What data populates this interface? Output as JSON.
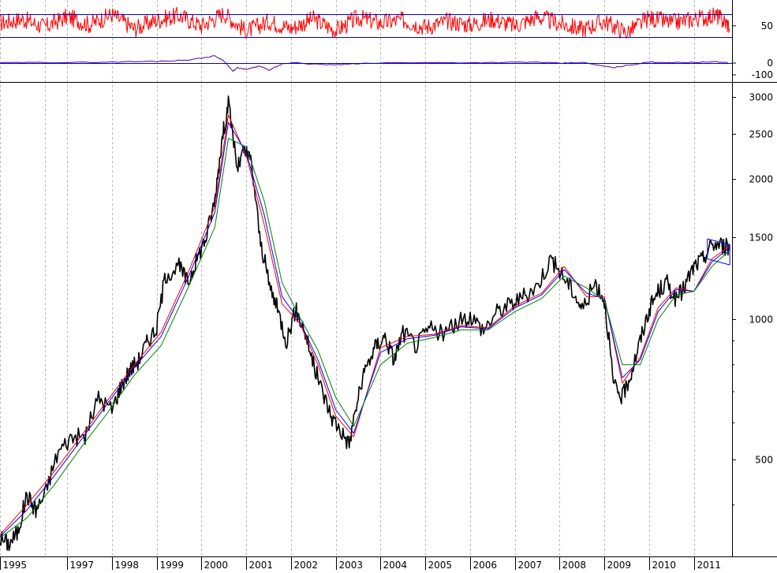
{
  "chart_data": [
    {
      "type": "line",
      "title": "",
      "panel": "oscillator",
      "yticks": [
        50
      ],
      "reference_lines": [
        70,
        30
      ],
      "ylim": [
        10,
        95
      ],
      "series": [
        {
          "color": "#ff0000",
          "x": [
            1995.0,
            1995.5,
            1996.0,
            1996.5,
            1997.0,
            1997.5,
            1998.0,
            1998.5,
            1999.0,
            1999.5,
            2000.0,
            2000.5,
            2001.0,
            2001.5,
            2002.0,
            2002.5,
            2003.0,
            2003.5,
            2004.0,
            2004.5,
            2005.0,
            2005.5,
            2006.0,
            2006.5,
            2007.0,
            2007.5,
            2008.0,
            2008.5,
            2009.0,
            2009.5,
            2010.0,
            2010.5,
            2011.0,
            2011.3
          ],
          "values": [
            55,
            62,
            48,
            66,
            52,
            70,
            45,
            60,
            68,
            50,
            72,
            40,
            58,
            46,
            62,
            42,
            64,
            55,
            60,
            48,
            58,
            52,
            62,
            50,
            66,
            54,
            44,
            58,
            38,
            64,
            55,
            62,
            68,
            50
          ]
        }
      ]
    },
    {
      "type": "line",
      "title": "",
      "panel": "momentum",
      "yticks": [
        0,
        -100
      ],
      "reference_lines": [
        0
      ],
      "ylim": [
        -160,
        120
      ],
      "series": [
        {
          "color": "#5500aa",
          "x": [
            1995.0,
            1996.0,
            1997.0,
            1998.0,
            1998.8,
            1999.3,
            1999.8,
            2000.0,
            2000.2,
            2000.3,
            2000.5,
            2000.8,
            2001.0,
            2001.3,
            2001.6,
            2002.0,
            2002.5,
            2003.0,
            2004.0,
            2005.0,
            2006.0,
            2007.0,
            2007.5,
            2008.0,
            2008.7,
            2009.0,
            2009.5,
            2010.0,
            2010.5,
            2011.0,
            2011.3
          ],
          "values": [
            2,
            5,
            6,
            12,
            18,
            30,
            60,
            20,
            -70,
            -40,
            -55,
            -25,
            -60,
            -10,
            5,
            -10,
            -15,
            -5,
            5,
            3,
            4,
            8,
            -2,
            5,
            -40,
            -20,
            8,
            5,
            6,
            10,
            2
          ]
        }
      ]
    },
    {
      "type": "line",
      "title": "",
      "panel": "price",
      "yscale": "log",
      "yticks": [
        500,
        1000,
        1500,
        2000,
        2500,
        3000
      ],
      "ylim": [
        310,
        3150
      ],
      "xlim": [
        1995.0,
        2011.35
      ],
      "xticks": [
        1995,
        1997,
        1998,
        1999,
        2000,
        2001,
        2002,
        2003,
        2004,
        2005,
        2006,
        2007,
        2008,
        2009,
        2010,
        2011
      ],
      "x_tick_positions": [
        1995.0,
        1996.5,
        1997.5,
        1998.5,
        1999.5,
        2000.5,
        2001.5,
        2002.5,
        2003.5,
        2004.5,
        2005.5,
        2006.5,
        2007.5,
        2008.5,
        2009.5,
        2010.5
      ],
      "vertical_gridlines": [
        1995.0,
        1996.0,
        1996.5,
        1997.5,
        1998.5,
        1999.5,
        2000.5,
        2001.5,
        2002.5,
        2003.5,
        2004.5,
        2005.5,
        2006.5,
        2007.5,
        2008.5,
        2009.5,
        2010.5
      ],
      "grid": "vertical-dashed",
      "series": [
        {
          "color": "#000000",
          "x": [
            1995.0,
            1995.2,
            1995.4,
            1995.6,
            1995.8,
            1996.0,
            1996.3,
            1996.6,
            1996.9,
            1997.2,
            1997.5,
            1997.7,
            1997.9,
            1998.1,
            1998.3,
            1998.5,
            1998.7,
            1999.0,
            1999.2,
            1999.4,
            1999.6,
            1999.8,
            1999.95,
            2000.1,
            2000.3,
            2000.45,
            2000.6,
            2000.8,
            2001.0,
            2001.2,
            2001.4,
            2001.6,
            2001.8,
            2002.0,
            2002.2,
            2002.4,
            2002.6,
            2002.8,
            2003.0,
            2003.2,
            2003.4,
            2003.6,
            2003.8,
            2004.0,
            2004.3,
            2004.6,
            2004.9,
            2005.2,
            2005.5,
            2005.8,
            2006.1,
            2006.4,
            2006.7,
            2007.0,
            2007.3,
            2007.55,
            2007.8,
            2008.0,
            2008.3,
            2008.5,
            2008.7,
            2008.9,
            2009.1,
            2009.3,
            2009.5,
            2009.7,
            2009.9,
            2010.1,
            2010.3,
            2010.5,
            2010.7,
            2010.9,
            2011.1,
            2011.3
          ],
          "values": [
            340,
            330,
            350,
            420,
            390,
            420,
            520,
            560,
            560,
            680,
            640,
            720,
            780,
            820,
            900,
            960,
            1250,
            1300,
            1200,
            1350,
            1500,
            1800,
            2400,
            2900,
            2100,
            2300,
            2200,
            1500,
            1200,
            1050,
            900,
            1050,
            950,
            800,
            700,
            620,
            580,
            540,
            680,
            800,
            880,
            920,
            820,
            940,
            880,
            960,
            930,
            980,
            1020,
            950,
            1040,
            1080,
            1120,
            1180,
            1350,
            1250,
            1150,
            1050,
            1200,
            1100,
            720,
            680,
            770,
            900,
            1050,
            1150,
            1200,
            1100,
            1180,
            1300,
            1350,
            1450,
            1450,
            1420
          ]
        },
        {
          "color": "#ff0000",
          "x": [
            1995.0,
            1995.6,
            1996.2,
            1996.8,
            1997.4,
            1998.0,
            1998.6,
            1999.2,
            1999.8,
            2000.1,
            2000.5,
            2000.9,
            2001.3,
            2001.7,
            2002.1,
            2002.5,
            2002.9,
            2003.5,
            2004.1,
            2004.7,
            2005.3,
            2005.9,
            2006.5,
            2007.1,
            2007.6,
            2008.1,
            2008.5,
            2008.9,
            2009.3,
            2009.7,
            2010.1,
            2010.5,
            2010.9,
            2011.3
          ],
          "values": [
            345,
            400,
            470,
            560,
            670,
            800,
            940,
            1260,
            1750,
            2750,
            2250,
            1600,
            1080,
            980,
            800,
            620,
            560,
            870,
            920,
            930,
            970,
            960,
            1070,
            1140,
            1300,
            1120,
            1120,
            730,
            830,
            1060,
            1170,
            1150,
            1350,
            1440
          ]
        },
        {
          "color": "#0000ff",
          "x": [
            1995.0,
            1995.6,
            1996.2,
            1996.8,
            1997.4,
            1998.0,
            1998.6,
            1999.2,
            1999.8,
            2000.1,
            2000.5,
            2000.9,
            2001.3,
            2001.7,
            2002.1,
            2002.5,
            2002.9,
            2003.5,
            2004.1,
            2004.7,
            2005.3,
            2005.9,
            2006.5,
            2007.1,
            2007.6,
            2008.1,
            2008.5,
            2008.9,
            2009.3,
            2009.7,
            2010.1,
            2010.5,
            2010.9,
            2011.3
          ],
          "values": [
            342,
            390,
            460,
            550,
            660,
            790,
            920,
            1230,
            1700,
            2650,
            2280,
            1680,
            1120,
            990,
            820,
            640,
            570,
            850,
            910,
            925,
            965,
            955,
            1060,
            1130,
            1280,
            1140,
            1110,
            750,
            820,
            1040,
            1160,
            1150,
            1330,
            1430
          ]
        },
        {
          "color": "#008000",
          "x": [
            1995.0,
            1995.6,
            1996.2,
            1996.8,
            1997.4,
            1998.0,
            1998.6,
            1999.2,
            1999.8,
            2000.1,
            2000.5,
            2000.9,
            2001.3,
            2001.7,
            2002.1,
            2002.5,
            2002.9,
            2003.5,
            2004.1,
            2004.7,
            2005.3,
            2005.9,
            2006.5,
            2007.1,
            2007.6,
            2008.1,
            2008.5,
            2008.9,
            2009.3,
            2009.7,
            2010.1,
            2010.5,
            2010.9,
            2011.3
          ],
          "values": [
            340,
            375,
            440,
            530,
            630,
            760,
            880,
            1170,
            1580,
            2450,
            2350,
            1800,
            1200,
            1010,
            860,
            680,
            590,
            800,
            890,
            915,
            950,
            950,
            1040,
            1110,
            1240,
            1170,
            1100,
            800,
            800,
            1000,
            1130,
            1150,
            1300,
            1410
          ]
        }
      ],
      "annotations": [
        {
          "type": "trend-channel",
          "color": "#0000ff",
          "x": [
            2010.8,
            2011.3
          ],
          "upper": [
            1490,
            1450
          ],
          "lower": [
            1350,
            1310
          ]
        }
      ]
    }
  ]
}
